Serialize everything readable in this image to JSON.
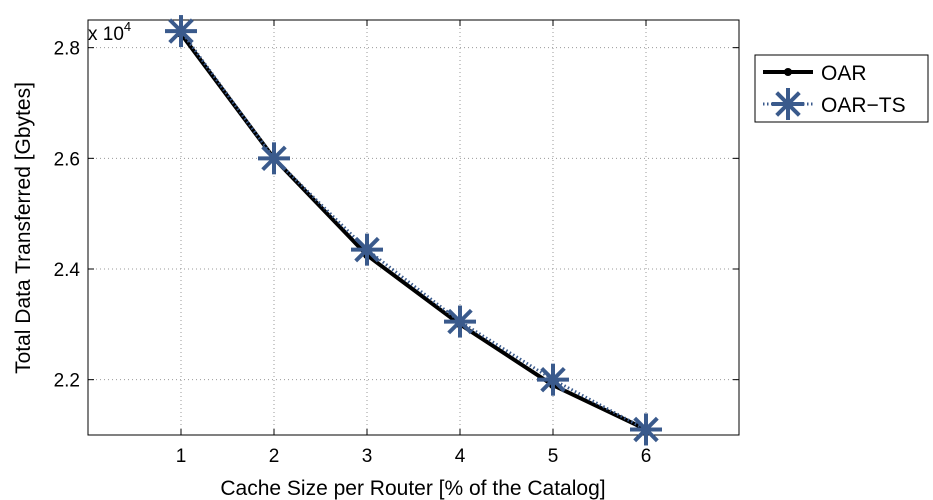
{
  "chart_data": {
    "type": "line",
    "xlabel": "Cache Size per Router [% of the Catalog]",
    "ylabel": "Total Data Transferred [Gbytes]",
    "y_multiplier": "x 10",
    "y_multiplier_exponent": "4",
    "xlim": [
      0,
      7
    ],
    "ylim": [
      2.1,
      2.85
    ],
    "x_ticks": [
      "1",
      "2",
      "3",
      "4",
      "5",
      "6"
    ],
    "y_ticks": [
      "2.2",
      "2.4",
      "2.6",
      "2.8"
    ],
    "grid": true,
    "legend_position": "outside-top-right",
    "x": [
      1,
      2,
      3,
      4,
      5,
      6
    ],
    "series": [
      {
        "name": "OAR",
        "values": [
          2.825,
          2.6,
          2.425,
          2.3,
          2.19,
          2.11
        ],
        "color": "#000000",
        "line": "solid",
        "marker": "dot"
      },
      {
        "name": "OAR−TS",
        "values": [
          2.83,
          2.6,
          2.435,
          2.305,
          2.2,
          2.11
        ],
        "color": "#3a5a8c",
        "line": "dotted",
        "marker": "asterisk"
      }
    ]
  }
}
